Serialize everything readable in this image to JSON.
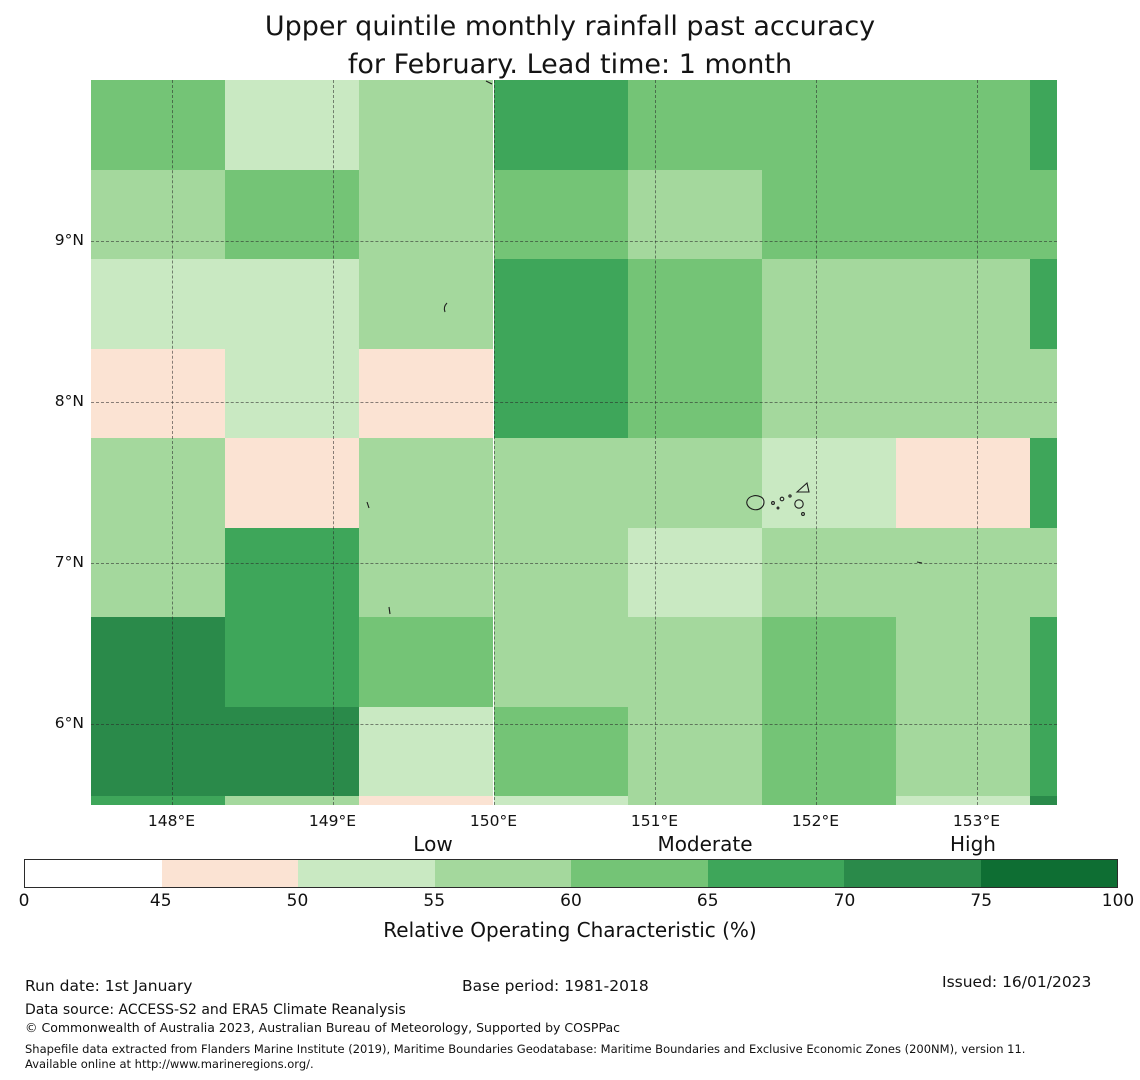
{
  "title": {
    "line1": "Upper quintile monthly rainfall past accuracy",
    "line2": "for February. Lead time: 1 month"
  },
  "chart_data": {
    "type": "heatmap",
    "title": "Upper quintile monthly rainfall past accuracy for February. Lead time: 1 month",
    "lon_range": [
      147.5,
      153.5
    ],
    "lat_range": [
      5.5,
      10.0
    ],
    "lon_edges": [
      147.5,
      148.3333,
      149.1667,
      150.0,
      150.8333,
      151.6667,
      152.5,
      153.3333,
      153.5
    ],
    "lat_edges": [
      10.0,
      9.4444,
      8.8889,
      8.3333,
      7.7778,
      7.2222,
      6.6667,
      6.1111,
      5.5556,
      5.5
    ],
    "x_ticks": [
      {
        "value": 148,
        "label": "148°E"
      },
      {
        "value": 149,
        "label": "149°E"
      },
      {
        "value": 150,
        "label": "150°E"
      },
      {
        "value": 151,
        "label": "151°E"
      },
      {
        "value": 152,
        "label": "152°E"
      },
      {
        "value": 153,
        "label": "153°E"
      }
    ],
    "y_ticks": [
      {
        "value": 9,
        "label": "9°N"
      },
      {
        "value": 8,
        "label": "8°N"
      },
      {
        "value": 7,
        "label": "7°N"
      },
      {
        "value": 6,
        "label": "6°N"
      }
    ],
    "bins": [
      {
        "range": "0-45",
        "color": "#ffffff"
      },
      {
        "range": "45-50",
        "color": "#fbe3d3"
      },
      {
        "range": "50-55",
        "color": "#c9e9c2"
      },
      {
        "range": "55-60",
        "color": "#a4d89d"
      },
      {
        "range": "60-65",
        "color": "#74c476"
      },
      {
        "range": "65-70",
        "color": "#3ea65a"
      },
      {
        "range": "70-75",
        "color": "#2a8a4a"
      },
      {
        "range": "75-100",
        "color": "#0e6e33"
      }
    ],
    "grid_levels": [
      [
        4,
        2,
        3,
        5,
        4,
        4,
        4,
        5
      ],
      [
        3,
        4,
        3,
        4,
        3,
        4,
        4,
        4
      ],
      [
        2,
        2,
        3,
        5,
        4,
        3,
        3,
        5
      ],
      [
        1,
        2,
        1,
        5,
        4,
        3,
        3,
        3
      ],
      [
        3,
        1,
        3,
        3,
        3,
        2,
        1,
        5
      ],
      [
        3,
        5,
        3,
        3,
        2,
        3,
        3,
        3
      ],
      [
        6,
        5,
        4,
        3,
        3,
        4,
        3,
        5
      ],
      [
        6,
        6,
        2,
        4,
        3,
        4,
        3,
        5
      ],
      [
        5,
        3,
        1,
        2,
        3,
        4,
        2,
        6
      ]
    ],
    "legend_position": "bottom",
    "grid": "dashed"
  },
  "colorbar": {
    "labels": {
      "low": "Low",
      "moderate": "Moderate",
      "high": "High"
    },
    "ticks": [
      "0",
      "45",
      "50",
      "55",
      "60",
      "65",
      "70",
      "75",
      "100"
    ],
    "title": "Relative Operating Characteristic (%)"
  },
  "footer": {
    "run_date": "Run date: 1st January",
    "base_period": "Base period: 1981-2018",
    "issued": "Issued: 16/01/2023",
    "data_source": "Data source: ACCESS-S2 and ERA5 Climate Reanalysis",
    "copyright": "© Commonwealth of Australia 2023, Australian Bureau of Meteorology, Supported by COSPPac",
    "shapefile_note": "Shapefile data extracted from Flanders Marine Institute (2019), Maritime Boundaries Geodatabase: Maritime Boundaries and Exclusive Economic Zones (200NM), version 11. Available online at http://www.marineregions.org/."
  }
}
